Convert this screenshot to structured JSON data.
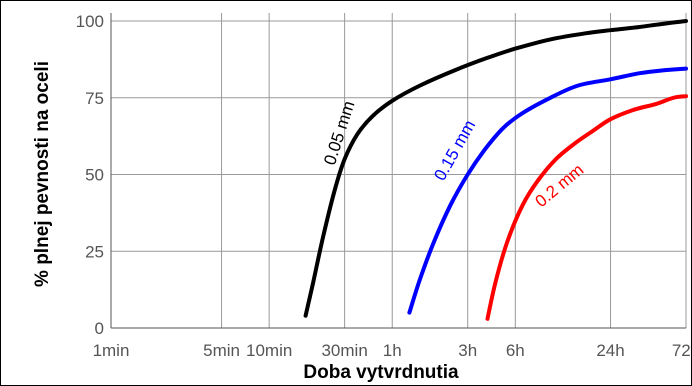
{
  "chart_data": {
    "type": "line",
    "xlabel": "Doba vytvrdnutia",
    "ylabel": "% plnej pevnosti na oceli",
    "x_scale": "log",
    "x_unit": "minutes",
    "xlim": [
      1,
      4320
    ],
    "ylim": [
      0,
      100
    ],
    "grid": true,
    "x_ticks": [
      {
        "label": "1min",
        "value": 1
      },
      {
        "label": "5min",
        "value": 5
      },
      {
        "label": "10min",
        "value": 10
      },
      {
        "label": "30min",
        "value": 30
      },
      {
        "label": "1h",
        "value": 60
      },
      {
        "label": "3h",
        "value": 180
      },
      {
        "label": "6h",
        "value": 360
      },
      {
        "label": "24h",
        "value": 1440
      },
      {
        "label": "72h",
        "value": 4320
      }
    ],
    "y_ticks": [
      {
        "label": "0",
        "value": 0
      },
      {
        "label": "25",
        "value": 25
      },
      {
        "label": "50",
        "value": 50
      },
      {
        "label": "75",
        "value": 75
      },
      {
        "label": "100",
        "value": 100
      }
    ],
    "series": [
      {
        "name": "0.05 mm",
        "color": "#000000",
        "label_anchor": {
          "x": 30,
          "y": 63
        },
        "x": [
          17,
          19,
          22,
          26,
          30,
          36,
          45,
          60,
          90,
          150,
          240,
          360,
          600,
          1000,
          1440,
          2160,
          3000,
          4320
        ],
        "y": [
          4,
          15,
          30,
          45,
          55,
          63,
          69,
          74,
          79,
          84,
          88,
          91,
          94,
          96,
          97,
          98,
          99,
          100
        ]
      },
      {
        "name": "0.15 mm",
        "color": "#0000ff",
        "label_anchor": {
          "x": 160,
          "y": 57
        },
        "x": [
          77,
          90,
          110,
          140,
          180,
          230,
          300,
          400,
          600,
          900,
          1440,
          2200,
          3200,
          4320
        ],
        "y": [
          5,
          16,
          28,
          40,
          50,
          58,
          65,
          70,
          75,
          79,
          81,
          83,
          84,
          84.5
        ]
      },
      {
        "name": "0.2 mm",
        "color": "#ff0000",
        "label_anchor": {
          "x": 720,
          "y": 45
        },
        "x": [
          240,
          270,
          320,
          400,
          500,
          650,
          850,
          1100,
          1440,
          2000,
          2800,
          3600,
          4320
        ],
        "y": [
          3,
          15,
          28,
          40,
          48,
          55,
          60,
          64,
          68,
          71,
          73,
          75,
          75.5
        ]
      }
    ]
  }
}
